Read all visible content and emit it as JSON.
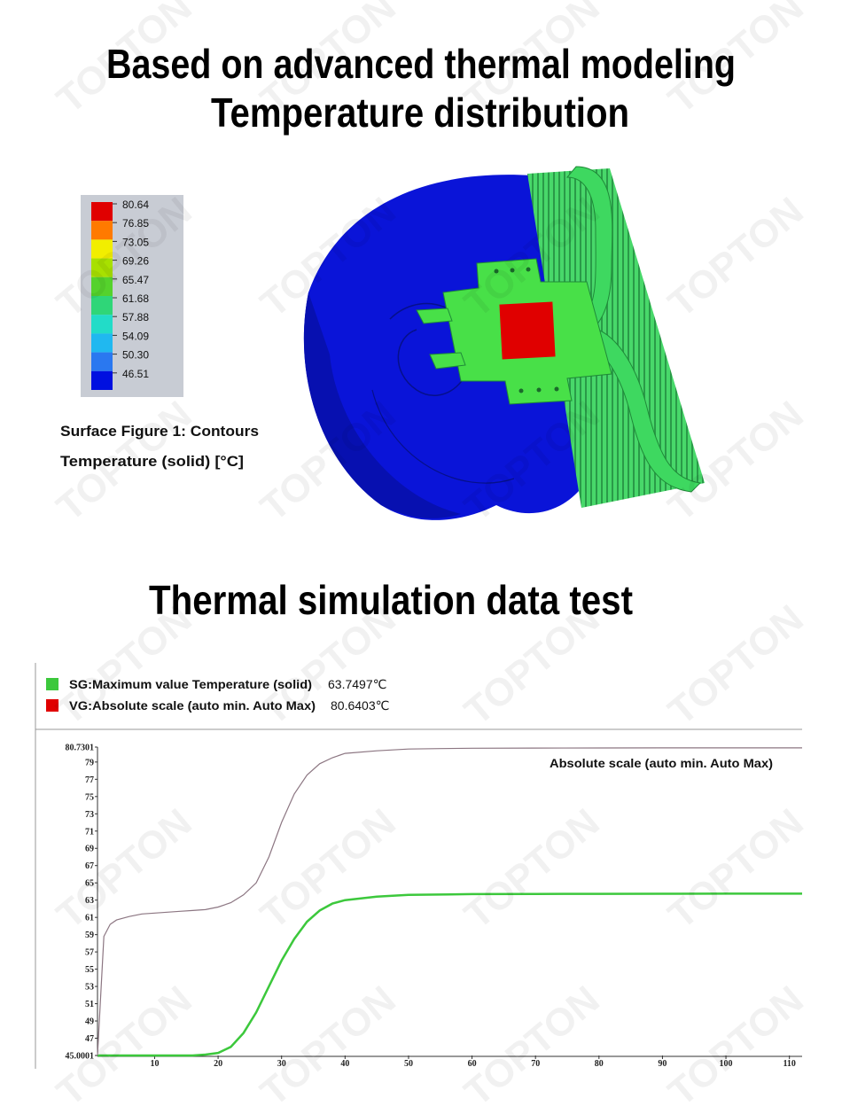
{
  "title_lines": [
    "Based on advanced thermal modeling",
    "Temperature distribution"
  ],
  "contour_legend": {
    "labels": [
      "80.64",
      "76.85",
      "73.05",
      "69.26",
      "65.47",
      "61.68",
      "57.88",
      "54.09",
      "50.30",
      "46.51"
    ],
    "colors": [
      "#e00000",
      "#ff7a00",
      "#f2ee00",
      "#a8e000",
      "#55d22c",
      "#2fd678",
      "#22dcc8",
      "#20b8f0",
      "#2a78f0",
      "#0010e0"
    ]
  },
  "captions": [
    "Surface Figure 1: Contours",
    "Temperature (solid) [°C]"
  ],
  "section_title": "Thermal simulation data test",
  "watermark": "TOPTON",
  "chart_data": {
    "type": "line",
    "annotation": "Absolute scale (auto min. Auto Max)",
    "x": [
      1,
      2,
      3,
      4,
      6,
      8,
      10,
      12,
      14,
      16,
      18,
      20,
      22,
      24,
      26,
      28,
      30,
      32,
      34,
      36,
      38,
      40,
      45,
      50,
      55,
      60,
      70,
      80,
      90,
      100,
      112
    ],
    "series": [
      {
        "name": "SG:Maximum value Temperature (solid)",
        "legend_value": "63.7497℃",
        "color": "#3cc83c",
        "values": [
          45.0,
          45.0,
          45.0,
          45.0,
          45.0,
          45.0,
          45.0,
          45.0,
          45.0,
          45.0,
          45.1,
          45.3,
          46.0,
          47.6,
          50.0,
          53.0,
          56.0,
          58.5,
          60.5,
          61.8,
          62.6,
          63.0,
          63.4,
          63.6,
          63.65,
          63.7,
          63.72,
          63.73,
          63.74,
          63.75,
          63.75
        ]
      },
      {
        "name": "VG:Absolute scale (auto min. Auto Max)",
        "legend_value": "80.6403℃",
        "color": "#8c7682",
        "values": [
          45.0,
          58.8,
          60.2,
          60.7,
          61.1,
          61.4,
          61.5,
          61.6,
          61.7,
          61.8,
          61.9,
          62.2,
          62.7,
          63.6,
          65.0,
          68.0,
          72.0,
          75.3,
          77.5,
          78.8,
          79.5,
          80.0,
          80.3,
          80.5,
          80.56,
          80.6,
          80.62,
          80.63,
          80.64,
          80.64,
          80.64
        ]
      }
    ],
    "xlim": [
      1,
      112
    ],
    "xticks": [
      10,
      20,
      30,
      40,
      50,
      60,
      70,
      80,
      90,
      100,
      110
    ],
    "ylim": [
      45.0001,
      80.7301
    ],
    "yticks": [
      45.0001,
      47,
      49,
      51,
      53,
      55,
      57,
      59,
      61,
      63,
      65,
      67,
      69,
      71,
      73,
      75,
      77,
      79,
      80.7301
    ]
  }
}
